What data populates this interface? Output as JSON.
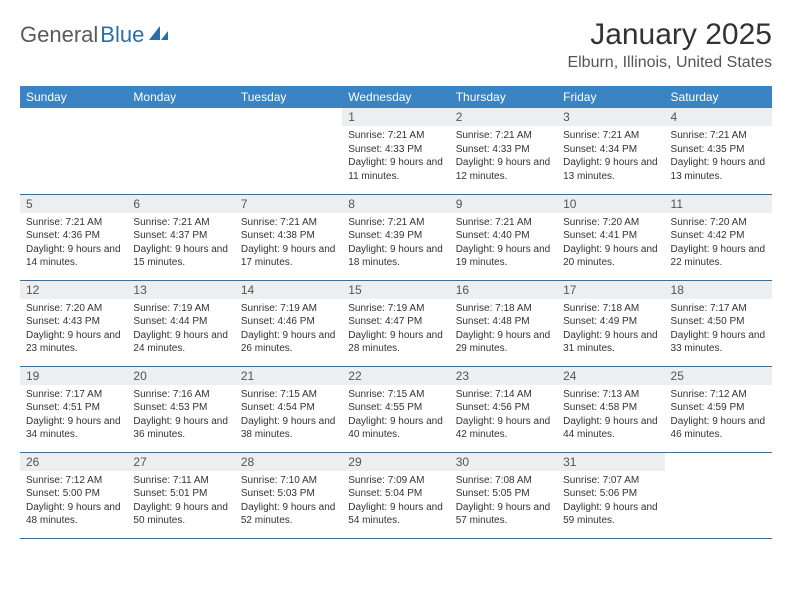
{
  "brand": {
    "part1": "General",
    "part2": "Blue"
  },
  "title": "January 2025",
  "location": "Elburn, Illinois, United States",
  "colors": {
    "header_bg": "#3a84c4",
    "header_text": "#ffffff",
    "daynum_bg": "#eceeef",
    "row_border": "#3a6f9a",
    "brand_blue": "#2c6ca8"
  },
  "daysOfWeek": [
    "Sunday",
    "Monday",
    "Tuesday",
    "Wednesday",
    "Thursday",
    "Friday",
    "Saturday"
  ],
  "weeks": [
    [
      {
        "n": "",
        "sr": "",
        "ss": "",
        "dl": ""
      },
      {
        "n": "",
        "sr": "",
        "ss": "",
        "dl": ""
      },
      {
        "n": "",
        "sr": "",
        "ss": "",
        "dl": ""
      },
      {
        "n": "1",
        "sr": "7:21 AM",
        "ss": "4:33 PM",
        "dl": "9 hours and 11 minutes."
      },
      {
        "n": "2",
        "sr": "7:21 AM",
        "ss": "4:33 PM",
        "dl": "9 hours and 12 minutes."
      },
      {
        "n": "3",
        "sr": "7:21 AM",
        "ss": "4:34 PM",
        "dl": "9 hours and 13 minutes."
      },
      {
        "n": "4",
        "sr": "7:21 AM",
        "ss": "4:35 PM",
        "dl": "9 hours and 13 minutes."
      }
    ],
    [
      {
        "n": "5",
        "sr": "7:21 AM",
        "ss": "4:36 PM",
        "dl": "9 hours and 14 minutes."
      },
      {
        "n": "6",
        "sr": "7:21 AM",
        "ss": "4:37 PM",
        "dl": "9 hours and 15 minutes."
      },
      {
        "n": "7",
        "sr": "7:21 AM",
        "ss": "4:38 PM",
        "dl": "9 hours and 17 minutes."
      },
      {
        "n": "8",
        "sr": "7:21 AM",
        "ss": "4:39 PM",
        "dl": "9 hours and 18 minutes."
      },
      {
        "n": "9",
        "sr": "7:21 AM",
        "ss": "4:40 PM",
        "dl": "9 hours and 19 minutes."
      },
      {
        "n": "10",
        "sr": "7:20 AM",
        "ss": "4:41 PM",
        "dl": "9 hours and 20 minutes."
      },
      {
        "n": "11",
        "sr": "7:20 AM",
        "ss": "4:42 PM",
        "dl": "9 hours and 22 minutes."
      }
    ],
    [
      {
        "n": "12",
        "sr": "7:20 AM",
        "ss": "4:43 PM",
        "dl": "9 hours and 23 minutes."
      },
      {
        "n": "13",
        "sr": "7:19 AM",
        "ss": "4:44 PM",
        "dl": "9 hours and 24 minutes."
      },
      {
        "n": "14",
        "sr": "7:19 AM",
        "ss": "4:46 PM",
        "dl": "9 hours and 26 minutes."
      },
      {
        "n": "15",
        "sr": "7:19 AM",
        "ss": "4:47 PM",
        "dl": "9 hours and 28 minutes."
      },
      {
        "n": "16",
        "sr": "7:18 AM",
        "ss": "4:48 PM",
        "dl": "9 hours and 29 minutes."
      },
      {
        "n": "17",
        "sr": "7:18 AM",
        "ss": "4:49 PM",
        "dl": "9 hours and 31 minutes."
      },
      {
        "n": "18",
        "sr": "7:17 AM",
        "ss": "4:50 PM",
        "dl": "9 hours and 33 minutes."
      }
    ],
    [
      {
        "n": "19",
        "sr": "7:17 AM",
        "ss": "4:51 PM",
        "dl": "9 hours and 34 minutes."
      },
      {
        "n": "20",
        "sr": "7:16 AM",
        "ss": "4:53 PM",
        "dl": "9 hours and 36 minutes."
      },
      {
        "n": "21",
        "sr": "7:15 AM",
        "ss": "4:54 PM",
        "dl": "9 hours and 38 minutes."
      },
      {
        "n": "22",
        "sr": "7:15 AM",
        "ss": "4:55 PM",
        "dl": "9 hours and 40 minutes."
      },
      {
        "n": "23",
        "sr": "7:14 AM",
        "ss": "4:56 PM",
        "dl": "9 hours and 42 minutes."
      },
      {
        "n": "24",
        "sr": "7:13 AM",
        "ss": "4:58 PM",
        "dl": "9 hours and 44 minutes."
      },
      {
        "n": "25",
        "sr": "7:12 AM",
        "ss": "4:59 PM",
        "dl": "9 hours and 46 minutes."
      }
    ],
    [
      {
        "n": "26",
        "sr": "7:12 AM",
        "ss": "5:00 PM",
        "dl": "9 hours and 48 minutes."
      },
      {
        "n": "27",
        "sr": "7:11 AM",
        "ss": "5:01 PM",
        "dl": "9 hours and 50 minutes."
      },
      {
        "n": "28",
        "sr": "7:10 AM",
        "ss": "5:03 PM",
        "dl": "9 hours and 52 minutes."
      },
      {
        "n": "29",
        "sr": "7:09 AM",
        "ss": "5:04 PM",
        "dl": "9 hours and 54 minutes."
      },
      {
        "n": "30",
        "sr": "7:08 AM",
        "ss": "5:05 PM",
        "dl": "9 hours and 57 minutes."
      },
      {
        "n": "31",
        "sr": "7:07 AM",
        "ss": "5:06 PM",
        "dl": "9 hours and 59 minutes."
      },
      {
        "n": "",
        "sr": "",
        "ss": "",
        "dl": ""
      }
    ]
  ]
}
